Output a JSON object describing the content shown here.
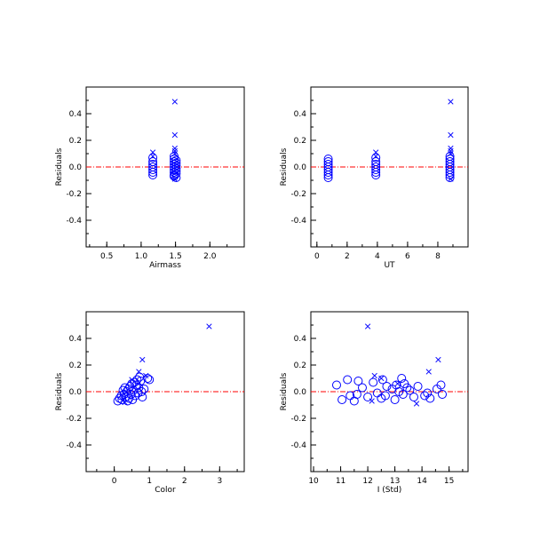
{
  "colors": {
    "marker": "#0000ff",
    "zero_line": "#ff0000",
    "axes": "#000000",
    "background": "#ffffff"
  },
  "chart_data": [
    {
      "type": "scatter",
      "xlabel": "Airmass",
      "ylabel": "Residuals",
      "xlim": [
        0.2,
        2.5
      ],
      "ylim": [
        -0.6,
        0.6
      ],
      "xticks": [
        0.5,
        1.0,
        1.5,
        2.0
      ],
      "xtick_labels": [
        "0.5",
        "1.0",
        "1.5",
        "2.0"
      ],
      "yticks": [
        -0.4,
        -0.2,
        0.0,
        0.2,
        0.4
      ],
      "ytick_labels": [
        "-0.4",
        "-0.2",
        "0.0",
        "0.2",
        "0.4"
      ],
      "reference_line_y": 0.0,
      "series": [
        {
          "marker": "circle",
          "points": [
            [
              1.17,
              0.07
            ],
            [
              1.17,
              0.04
            ],
            [
              1.17,
              0.02
            ],
            [
              1.17,
              0.0
            ],
            [
              1.17,
              -0.02
            ],
            [
              1.17,
              -0.04
            ],
            [
              1.17,
              -0.06
            ],
            [
              1.48,
              0.08
            ],
            [
              1.48,
              0.06
            ],
            [
              1.48,
              0.04
            ],
            [
              1.48,
              0.02
            ],
            [
              1.48,
              0.0
            ],
            [
              1.48,
              -0.02
            ],
            [
              1.48,
              -0.04
            ],
            [
              1.48,
              -0.06
            ],
            [
              1.48,
              -0.07
            ],
            [
              1.51,
              0.05
            ],
            [
              1.51,
              0.03
            ],
            [
              1.51,
              0.01
            ],
            [
              1.51,
              -0.01
            ],
            [
              1.51,
              -0.03
            ],
            [
              1.51,
              -0.05
            ],
            [
              1.51,
              -0.08
            ]
          ]
        },
        {
          "marker": "cross",
          "points": [
            [
              1.17,
              0.11
            ],
            [
              1.17,
              0.08
            ],
            [
              1.49,
              0.49
            ],
            [
              1.49,
              0.24
            ],
            [
              1.49,
              0.14
            ],
            [
              1.49,
              0.12
            ],
            [
              1.49,
              0.1
            ],
            [
              1.49,
              -0.09
            ]
          ]
        }
      ]
    },
    {
      "type": "scatter",
      "xlabel": "UT",
      "ylabel": "Residuals",
      "xlim": [
        -0.4,
        10.0
      ],
      "ylim": [
        -0.6,
        0.6
      ],
      "xticks": [
        0,
        2,
        4,
        6,
        8
      ],
      "xtick_labels": [
        "0",
        "2",
        "4",
        "6",
        "8"
      ],
      "yticks": [
        -0.4,
        -0.2,
        0.0,
        0.2,
        0.4
      ],
      "ytick_labels": [
        "-0.4",
        "-0.2",
        "0.0",
        "0.2",
        "0.4"
      ],
      "reference_line_y": 0.0,
      "series": [
        {
          "marker": "circle",
          "points": [
            [
              0.75,
              0.06
            ],
            [
              0.75,
              0.04
            ],
            [
              0.75,
              0.02
            ],
            [
              0.75,
              0.0
            ],
            [
              0.75,
              -0.02
            ],
            [
              0.75,
              -0.04
            ],
            [
              0.75,
              -0.06
            ],
            [
              0.75,
              -0.08
            ],
            [
              3.9,
              0.07
            ],
            [
              3.9,
              0.04
            ],
            [
              3.9,
              0.02
            ],
            [
              3.9,
              0.0
            ],
            [
              3.9,
              -0.02
            ],
            [
              3.9,
              -0.04
            ],
            [
              3.9,
              -0.06
            ],
            [
              8.8,
              0.08
            ],
            [
              8.8,
              0.06
            ],
            [
              8.8,
              0.04
            ],
            [
              8.8,
              0.02
            ],
            [
              8.8,
              0.0
            ],
            [
              8.8,
              -0.02
            ],
            [
              8.8,
              -0.04
            ],
            [
              8.8,
              -0.06
            ],
            [
              8.8,
              -0.08
            ]
          ]
        },
        {
          "marker": "cross",
          "points": [
            [
              3.9,
              0.11
            ],
            [
              3.9,
              0.08
            ],
            [
              8.85,
              0.49
            ],
            [
              8.85,
              0.24
            ],
            [
              8.85,
              0.14
            ],
            [
              8.85,
              0.12
            ],
            [
              8.85,
              0.1
            ],
            [
              8.85,
              -0.09
            ]
          ]
        }
      ]
    },
    {
      "type": "scatter",
      "xlabel": "Color",
      "ylabel": "Residuals",
      "xlim": [
        -0.8,
        3.7
      ],
      "ylim": [
        -0.6,
        0.6
      ],
      "xticks": [
        0,
        1,
        2,
        3
      ],
      "xtick_labels": [
        "0",
        "1",
        "2",
        "3"
      ],
      "yticks": [
        -0.4,
        -0.2,
        0.0,
        0.2,
        0.4
      ],
      "ytick_labels": [
        "-0.4",
        "-0.2",
        "0.0",
        "0.2",
        "0.4"
      ],
      "reference_line_y": 0.0,
      "series": [
        {
          "marker": "circle",
          "points": [
            [
              0.1,
              -0.07
            ],
            [
              0.15,
              -0.05
            ],
            [
              0.2,
              -0.03
            ],
            [
              0.22,
              -0.06
            ],
            [
              0.25,
              0.01
            ],
            [
              0.28,
              -0.02
            ],
            [
              0.3,
              0.03
            ],
            [
              0.33,
              -0.04
            ],
            [
              0.35,
              0.0
            ],
            [
              0.38,
              -0.07
            ],
            [
              0.4,
              0.02
            ],
            [
              0.42,
              -0.05
            ],
            [
              0.45,
              0.04
            ],
            [
              0.48,
              -0.02
            ],
            [
              0.5,
              0.06
            ],
            [
              0.52,
              -0.06
            ],
            [
              0.55,
              0.01
            ],
            [
              0.58,
              0.07
            ],
            [
              0.6,
              -0.03
            ],
            [
              0.63,
              0.05
            ],
            [
              0.65,
              0.09
            ],
            [
              0.68,
              -0.01
            ],
            [
              0.7,
              0.03
            ],
            [
              0.72,
              0.11
            ],
            [
              0.75,
              0.08
            ],
            [
              0.78,
              0.0
            ],
            [
              0.8,
              -0.04
            ],
            [
              0.85,
              0.02
            ],
            [
              0.95,
              0.1
            ],
            [
              1.0,
              0.09
            ]
          ]
        },
        {
          "marker": "cross",
          "points": [
            [
              2.7,
              0.49
            ],
            [
              0.8,
              0.24
            ],
            [
              0.7,
              0.15
            ],
            [
              0.9,
              0.12
            ],
            [
              0.5,
              0.09
            ],
            [
              0.3,
              -0.08
            ]
          ]
        }
      ]
    },
    {
      "type": "scatter",
      "xlabel": "I (Std)",
      "ylabel": "Residuals",
      "xlim": [
        9.9,
        15.7
      ],
      "ylim": [
        -0.6,
        0.6
      ],
      "xticks": [
        10,
        11,
        12,
        13,
        14,
        15
      ],
      "xtick_labels": [
        "10",
        "11",
        "12",
        "13",
        "14",
        "15"
      ],
      "yticks": [
        -0.4,
        -0.2,
        0.0,
        0.2,
        0.4
      ],
      "ytick_labels": [
        "-0.4",
        "-0.2",
        "0.0",
        "0.2",
        "0.4"
      ],
      "reference_line_y": 0.0,
      "series": [
        {
          "marker": "circle",
          "points": [
            [
              10.85,
              0.05
            ],
            [
              11.05,
              -0.06
            ],
            [
              11.25,
              0.09
            ],
            [
              11.35,
              -0.03
            ],
            [
              11.5,
              -0.07
            ],
            [
              11.6,
              -0.02
            ],
            [
              11.65,
              0.08
            ],
            [
              11.8,
              0.03
            ],
            [
              12.0,
              -0.04
            ],
            [
              12.2,
              0.07
            ],
            [
              12.35,
              -0.01
            ],
            [
              12.5,
              -0.05
            ],
            [
              12.55,
              0.09
            ],
            [
              12.65,
              -0.03
            ],
            [
              12.7,
              0.04
            ],
            [
              12.9,
              0.02
            ],
            [
              13.0,
              -0.06
            ],
            [
              13.05,
              0.05
            ],
            [
              13.15,
              0.0
            ],
            [
              13.25,
              0.1
            ],
            [
              13.3,
              -0.02
            ],
            [
              13.35,
              0.06
            ],
            [
              13.45,
              0.03
            ],
            [
              13.55,
              0.01
            ],
            [
              13.7,
              -0.04
            ],
            [
              13.85,
              0.04
            ],
            [
              14.1,
              -0.03
            ],
            [
              14.2,
              -0.01
            ],
            [
              14.3,
              -0.05
            ],
            [
              14.55,
              0.02
            ],
            [
              14.7,
              0.05
            ],
            [
              14.75,
              -0.02
            ]
          ]
        },
        {
          "marker": "cross",
          "points": [
            [
              12.0,
              0.49
            ],
            [
              14.6,
              0.24
            ],
            [
              14.25,
              0.15
            ],
            [
              12.25,
              0.12
            ],
            [
              12.5,
              0.1
            ],
            [
              13.8,
              -0.09
            ],
            [
              12.15,
              -0.07
            ],
            [
              13.1,
              0.06
            ]
          ]
        }
      ]
    }
  ]
}
